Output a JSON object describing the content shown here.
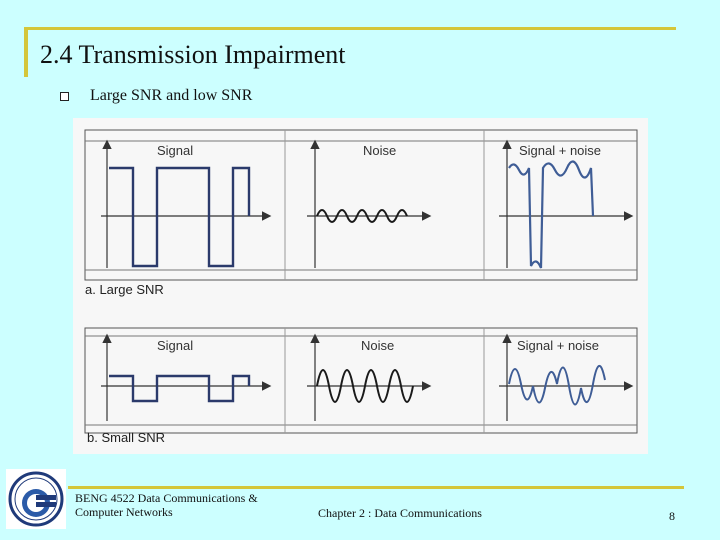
{
  "slide": {
    "title": "2.4 Transmission Impairment",
    "bullet": "Large SNR and low SNR",
    "footer": {
      "course_line1": "BENG 4522 Data Communications &",
      "course_line2": "Computer Networks",
      "chapter": "Chapter 2 : Data Communications",
      "page": "8"
    }
  },
  "figure": {
    "part_a": {
      "label": "a. Large SNR",
      "panels": [
        "Signal",
        "Noise",
        "Signal + noise"
      ]
    },
    "part_b": {
      "label": "b. Small  SNR",
      "panels": [
        "Signal",
        "Noise",
        "Signal + noise"
      ]
    }
  },
  "colors": {
    "background": "#CCFFFF",
    "accent_rule": "#D4C63A",
    "signal": "#2B3A6B",
    "wave": "#1a1a1a"
  }
}
